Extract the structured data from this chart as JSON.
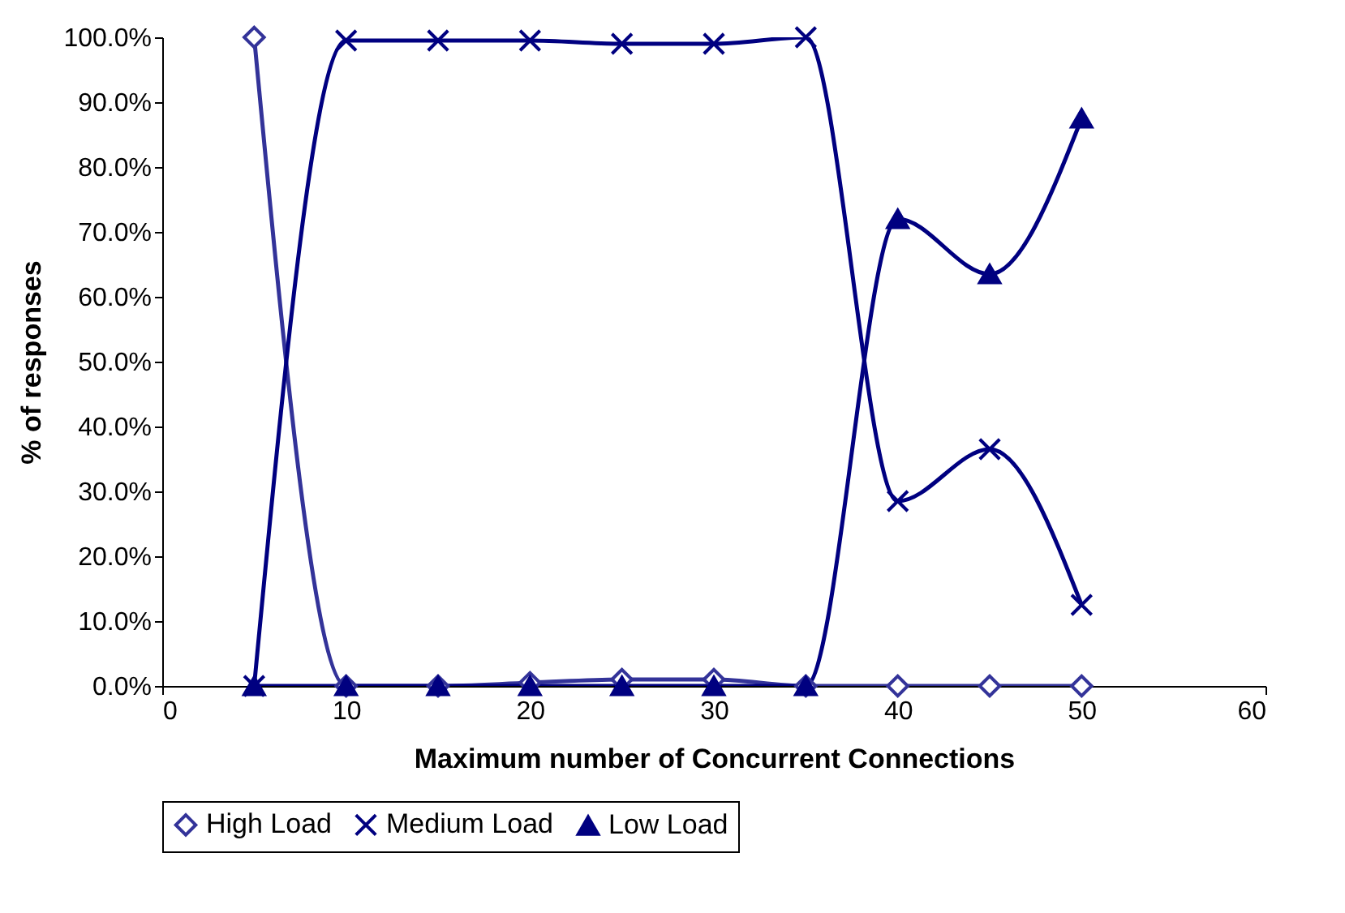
{
  "chart_data": {
    "type": "line",
    "xlabel": "Maximum number of Concurrent Connections",
    "ylabel": "% of responses",
    "x": [
      5,
      10,
      15,
      20,
      25,
      30,
      35,
      40,
      45,
      50
    ],
    "series": [
      {
        "name": "High Load",
        "color": "#333399",
        "marker": "diamond",
        "values": [
          100,
          0,
          0,
          0.5,
          1,
          1,
          0,
          0,
          0,
          0
        ]
      },
      {
        "name": "Medium Load",
        "color": "#000080",
        "marker": "cross",
        "values": [
          0,
          99.5,
          99.5,
          99.5,
          99,
          99,
          100,
          28.5,
          36.5,
          12.5
        ]
      },
      {
        "name": "Low Load",
        "color": "#000080",
        "marker": "triangle",
        "values": [
          0,
          0,
          0,
          0,
          0,
          0,
          0,
          72,
          63.5,
          87.5
        ]
      }
    ],
    "xlim": [
      0,
      60
    ],
    "xticks": [
      0,
      10,
      20,
      30,
      40,
      50,
      60
    ],
    "ylim": [
      0,
      100
    ],
    "yticks": [
      {
        "value": 0,
        "label": "0.0%"
      },
      {
        "value": 10,
        "label": "10.0%"
      },
      {
        "value": 20,
        "label": "20.0%"
      },
      {
        "value": 30,
        "label": "30.0%"
      },
      {
        "value": 40,
        "label": "40.0%"
      },
      {
        "value": 50,
        "label": "50.0%"
      },
      {
        "value": 60,
        "label": "60.0%"
      },
      {
        "value": 70,
        "label": "70.0%"
      },
      {
        "value": 80,
        "label": "80.0%"
      },
      {
        "value": 90,
        "label": "90.0%"
      },
      {
        "value": 100,
        "label": "100.0%"
      }
    ],
    "grid": false,
    "legend": "bottom",
    "line_style": "solid"
  }
}
